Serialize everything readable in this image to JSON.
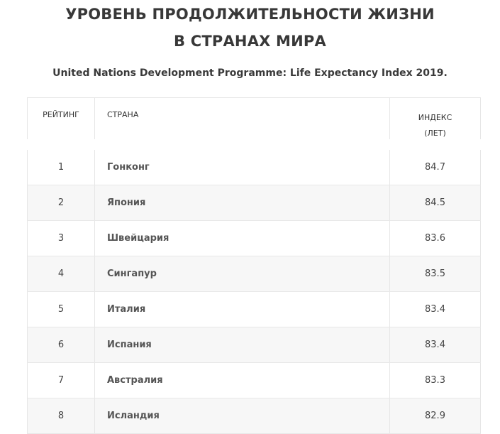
{
  "title": {
    "line1": "УРОВЕНЬ ПРОДОЛЖИТЕЛЬНОСТИ ЖИЗНИ",
    "line2": "В СТРАНАХ МИРА"
  },
  "subtitle": "United Nations Development Programme: Life Expectancy Index 2019.",
  "table": {
    "headers": {
      "rank": "РЕЙТИНГ",
      "country": "СТРАНА",
      "index_line1": "ИНДЕКС",
      "index_line2": "(ЛЕТ)"
    },
    "rows": [
      {
        "rank": "1",
        "country": "Гонконг",
        "index": "84.7"
      },
      {
        "rank": "2",
        "country": "Япония",
        "index": "84.5"
      },
      {
        "rank": "3",
        "country": "Швейцария",
        "index": "83.6"
      },
      {
        "rank": "4",
        "country": "Сингапур",
        "index": "83.5"
      },
      {
        "rank": "5",
        "country": "Италия",
        "index": "83.4"
      },
      {
        "rank": "6",
        "country": "Испания",
        "index": "83.4"
      },
      {
        "rank": "7",
        "country": "Австралия",
        "index": "83.3"
      },
      {
        "rank": "8",
        "country": "Исландия",
        "index": "82.9"
      }
    ]
  }
}
